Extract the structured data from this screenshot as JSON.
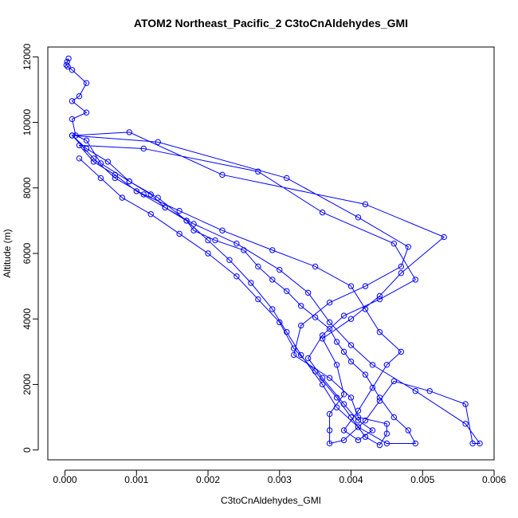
{
  "chart_data": {
    "type": "line",
    "title": "ATOM2 Northeast_Pacific_2 C3toCnAldehydes_GMI",
    "xlabel": "C3toCnAldehydes_GMI",
    "ylabel": "Altitude (m)",
    "xlim": [
      -0.00024,
      0.006
    ],
    "ylim": [
      -300,
      12300
    ],
    "xticks": [
      0,
      0.001,
      0.002,
      0.003,
      0.004,
      0.005,
      0.006
    ],
    "xtick_labels": [
      "0.000",
      "0.001",
      "0.002",
      "0.003",
      "0.004",
      "0.005",
      "0.006"
    ],
    "yticks": [
      0,
      2000,
      4000,
      6000,
      8000,
      10000,
      12000
    ],
    "ytick_labels": [
      "0",
      "2000",
      "4000",
      "6000",
      "8000",
      "10000",
      "12000"
    ],
    "grid": false,
    "series": [
      {
        "color": "#0000ff",
        "marker": "open-circle",
        "points": [
          [
            5e-05,
            11950
          ],
          [
            3e-05,
            11850
          ],
          [
            2e-05,
            11750
          ],
          [
            4e-05,
            11700
          ],
          [
            0.0001,
            11600
          ],
          [
            0.0003,
            11200
          ],
          [
            0.0002,
            10800
          ],
          [
            0.0001,
            10650
          ],
          [
            0.0003,
            10300
          ],
          [
            0.0001,
            10100
          ],
          [
            0.00015,
            9600
          ],
          [
            0.0003,
            9450
          ],
          [
            0.0005,
            8750
          ],
          [
            0.0009,
            8200
          ],
          [
            0.0012,
            7800
          ],
          [
            0.0014,
            7400
          ],
          [
            0.0017,
            7000
          ],
          [
            0.0018,
            6700
          ],
          [
            0.0021,
            6400
          ],
          [
            0.0025,
            6100
          ],
          [
            0.0027,
            5600
          ],
          [
            0.0029,
            5200
          ],
          [
            0.0031,
            4850
          ],
          [
            0.0033,
            4400
          ],
          [
            0.0035,
            4050
          ],
          [
            0.0037,
            3700
          ],
          [
            0.0038,
            3300
          ],
          [
            0.0039,
            3000
          ],
          [
            0.004,
            2700
          ],
          [
            0.0042,
            2300
          ],
          [
            0.0044,
            1600
          ],
          [
            0.0046,
            1000
          ],
          [
            0.0048,
            600
          ],
          [
            0.0049,
            200
          ],
          [
            0.0045,
            200
          ],
          [
            0.0041,
            700
          ],
          [
            0.0038,
            1300
          ],
          [
            0.0036,
            2000
          ],
          [
            0.0033,
            2900
          ],
          [
            0.0031,
            3600
          ],
          [
            0.0029,
            4300
          ],
          [
            0.0026,
            5100
          ],
          [
            0.0023,
            5800
          ],
          [
            0.002,
            6400
          ],
          [
            0.0017,
            7000
          ],
          [
            0.0013,
            7700
          ],
          [
            0.0009,
            8200
          ],
          [
            0.0006,
            8800
          ],
          [
            0.0003,
            9200
          ],
          [
            0.0001,
            9600
          ],
          [
            0.0009,
            9700
          ],
          [
            0.0022,
            8400
          ],
          [
            0.0042,
            7500
          ],
          [
            0.0053,
            6500
          ],
          [
            0.0047,
            5400
          ],
          [
            0.0044,
            4700
          ],
          [
            0.004,
            4000
          ],
          [
            0.0036,
            3400
          ],
          [
            0.0038,
            2600
          ],
          [
            0.0039,
            1700
          ],
          [
            0.0037,
            1100
          ],
          [
            0.0037,
            600
          ],
          [
            0.0037,
            200
          ],
          [
            0.0039,
            300
          ],
          [
            0.0042,
            900
          ],
          [
            0.0044,
            1500
          ],
          [
            0.0046,
            2100
          ],
          [
            0.0051,
            1800
          ],
          [
            0.0056,
            1400
          ],
          [
            0.0057,
            200
          ],
          [
            0.0058,
            200
          ],
          [
            0.0056,
            800
          ],
          [
            0.0049,
            1800
          ],
          [
            0.0043,
            2600
          ],
          [
            0.004,
            3200
          ],
          [
            0.0037,
            3900
          ],
          [
            0.0034,
            4800
          ],
          [
            0.003,
            5500
          ],
          [
            0.0024,
            6300
          ],
          [
            0.0018,
            6900
          ],
          [
            0.0014,
            7400
          ],
          [
            0.001,
            7900
          ],
          [
            0.0007,
            8400
          ],
          [
            0.0004,
            8800
          ],
          [
            0.0002,
            9300
          ],
          [
            0.0011,
            9200
          ],
          [
            0.0027,
            8500
          ],
          [
            0.0036,
            7250
          ],
          [
            0.0046,
            6300
          ],
          [
            0.0049,
            5200
          ],
          [
            0.0044,
            4600
          ],
          [
            0.0039,
            4100
          ],
          [
            0.0036,
            3500
          ],
          [
            0.0034,
            2800
          ],
          [
            0.0036,
            2200
          ],
          [
            0.0039,
            1400
          ],
          [
            0.0041,
            900
          ],
          [
            0.0043,
            600
          ],
          [
            0.0041,
            300
          ],
          [
            0.0039,
            600
          ],
          [
            0.0041,
            1200
          ],
          [
            0.0043,
            1900
          ],
          [
            0.0045,
            2600
          ],
          [
            0.0047,
            3000
          ],
          [
            0.0044,
            3600
          ],
          [
            0.0042,
            4300
          ],
          [
            0.004,
            5000
          ],
          [
            0.0035,
            5600
          ],
          [
            0.0029,
            6100
          ],
          [
            0.0022,
            6700
          ],
          [
            0.0016,
            7300
          ],
          [
            0.0011,
            7800
          ],
          [
            0.0007,
            8300
          ],
          [
            0.0004,
            8900
          ],
          [
            0.0001,
            9600
          ],
          [
            0.0013,
            9400
          ],
          [
            0.0031,
            8300
          ],
          [
            0.0041,
            7100
          ],
          [
            0.0048,
            6200
          ],
          [
            0.0047,
            5600
          ],
          [
            0.0042,
            5000
          ],
          [
            0.0037,
            4500
          ],
          [
            0.0033,
            3800
          ],
          [
            0.0032,
            2900
          ],
          [
            0.0037,
            2200
          ],
          [
            0.004,
            1600
          ],
          [
            0.0041,
            1000
          ],
          [
            0.0045,
            800
          ],
          [
            0.0045,
            500
          ],
          [
            0.0044,
            150
          ],
          [
            0.0042,
            400
          ],
          [
            0.004,
            1000
          ],
          [
            0.0038,
            1600
          ],
          [
            0.0035,
            2400
          ],
          [
            0.0032,
            3100
          ],
          [
            0.003,
            3900
          ],
          [
            0.0027,
            4600
          ],
          [
            0.0024,
            5300
          ],
          [
            0.002,
            6000
          ],
          [
            0.0016,
            6600
          ],
          [
            0.0012,
            7200
          ],
          [
            0.0008,
            7700
          ],
          [
            0.0005,
            8300
          ],
          [
            0.0002,
            8900
          ]
        ]
      }
    ]
  }
}
